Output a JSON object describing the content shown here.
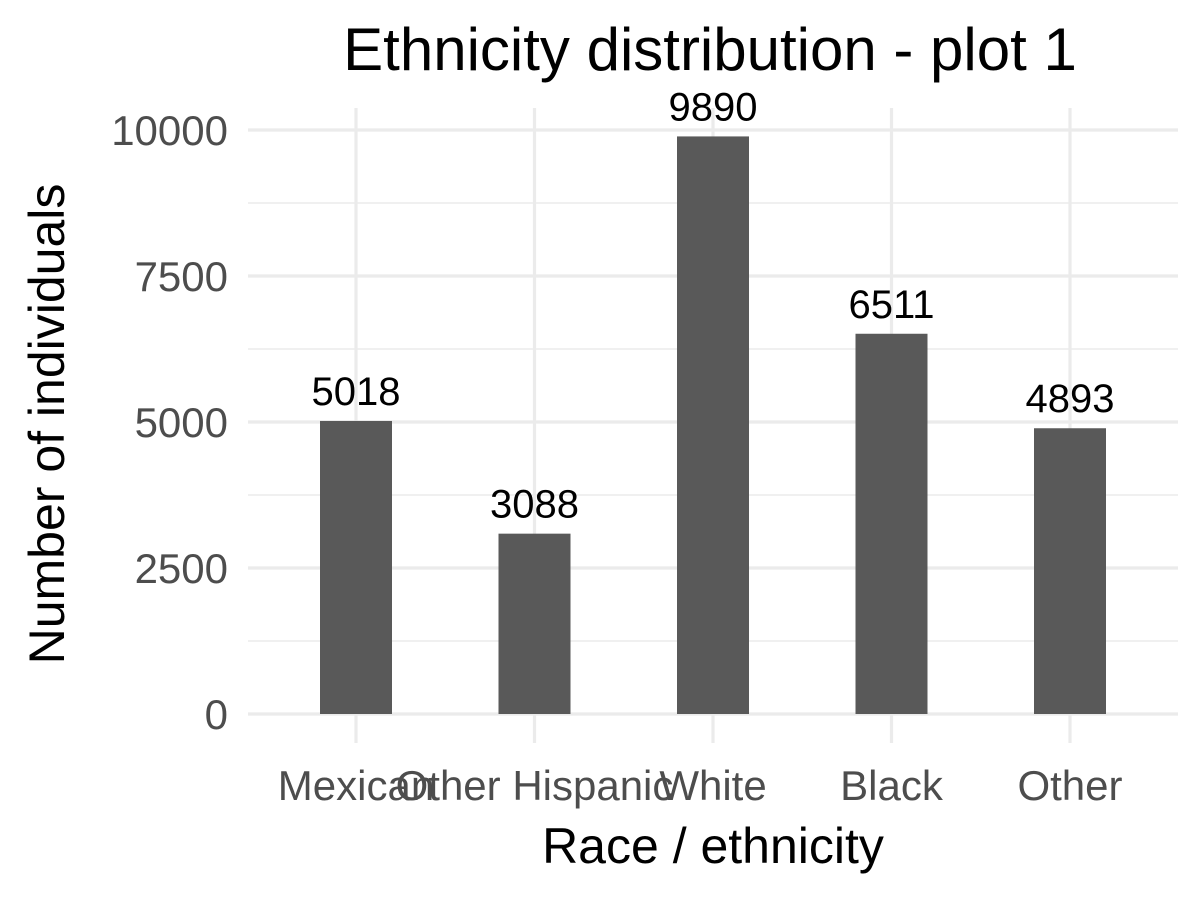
{
  "chart_data": {
    "type": "bar",
    "title": "Ethnicity distribution - plot 1",
    "xlabel": "Race / ethnicity",
    "ylabel": "Number of individuals",
    "categories": [
      "Mexican",
      "Other Hispanic",
      "White",
      "Black",
      "Other"
    ],
    "values": [
      5018,
      3088,
      9890,
      6511,
      4893
    ],
    "data_labels": [
      "5018",
      "3088",
      "9890",
      "6511",
      "4893"
    ],
    "yticks": [
      0,
      2500,
      5000,
      7500,
      10000
    ],
    "ytick_labels": [
      "0",
      "2500",
      "5000",
      "7500",
      "10000"
    ],
    "ylim": [
      0,
      10000
    ],
    "grid": true,
    "legend": "none",
    "colors": {
      "bar": "#595959",
      "grid": "#ebebeb",
      "tick_text": "#4d4d4d",
      "text": "#000000",
      "background": "#ffffff"
    }
  }
}
